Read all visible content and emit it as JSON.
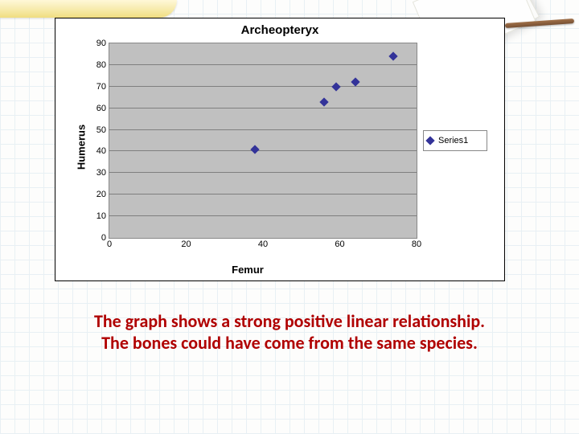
{
  "chart": {
    "type": "scatter",
    "title": "Archeopteryx",
    "title_fontsize": 15,
    "xlabel": "Femur",
    "ylabel": "Humerus",
    "label_fontsize": 13,
    "tick_fontsize": 11,
    "xlim": [
      0,
      80
    ],
    "ylim": [
      0,
      90
    ],
    "xtick_step": 20,
    "ytick_step": 10,
    "xticks": [
      0,
      20,
      40,
      60,
      80
    ],
    "yticks": [
      0,
      10,
      20,
      30,
      40,
      50,
      60,
      70,
      80,
      90
    ],
    "plot_background": "#c0c0c0",
    "frame_background": "#ffffff",
    "frame_border": "#000000",
    "plot_border": "#888888",
    "grid_color": "#7f7f7f",
    "grid_on": true,
    "marker_style": "diamond",
    "marker_size": 8,
    "series": [
      {
        "name": "Series1",
        "color": "#333399",
        "points": [
          {
            "x": 38,
            "y": 41
          },
          {
            "x": 56,
            "y": 63
          },
          {
            "x": 59,
            "y": 70
          },
          {
            "x": 64,
            "y": 72
          },
          {
            "x": 74,
            "y": 84
          }
        ]
      }
    ],
    "legend": {
      "position": "right",
      "border": "#888888",
      "background": "#ffffff"
    }
  },
  "caption": {
    "line1": "The graph shows a strong positive linear relationship.",
    "line2": "The bones could have come from the same species.",
    "color": "#b00000",
    "fontsize": 22,
    "fontweight": 700
  },
  "slide": {
    "background_tint": "#fdfdfc",
    "gridline_color": "#e8f0f4",
    "accent_gradient_top": "#fff8d8",
    "accent_gradient_bottom": "#f0dd80"
  }
}
